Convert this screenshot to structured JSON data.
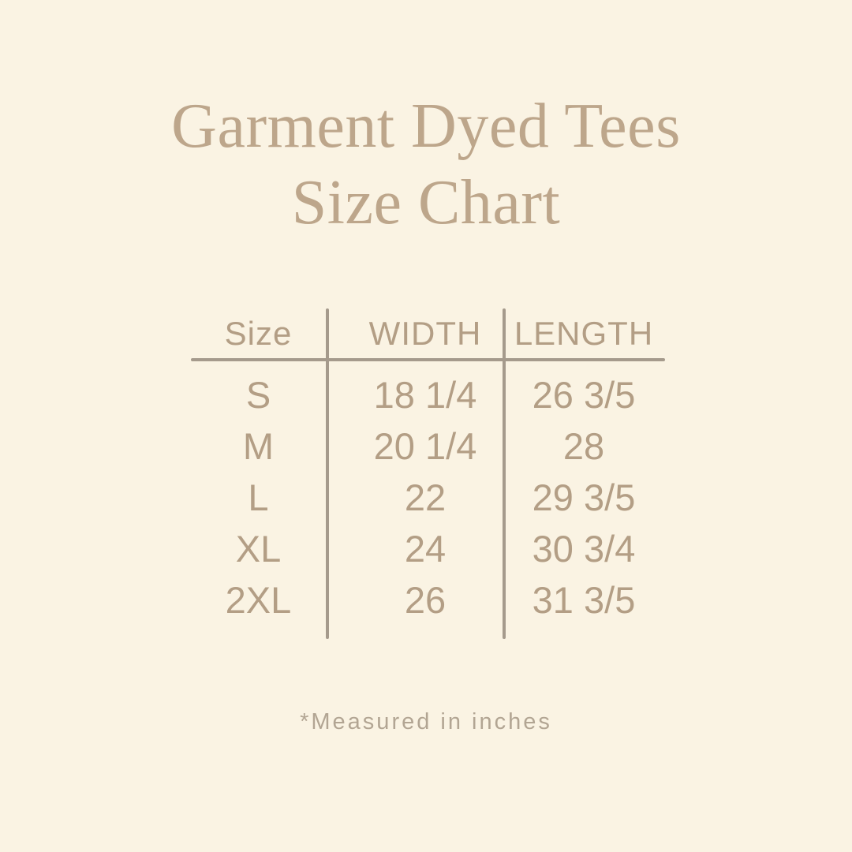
{
  "title": {
    "line1": "Garment Dyed Tees",
    "line2": "Size Chart"
  },
  "table": {
    "headers": [
      "Size",
      "WIDTH",
      "LENGTH"
    ],
    "rows": [
      {
        "size": "S",
        "width": "18 1/4",
        "length": "26 3/5"
      },
      {
        "size": "M",
        "width": "20 1/4",
        "length": "28"
      },
      {
        "size": "L",
        "width": "22",
        "length": "29 3/5"
      },
      {
        "size": "XL",
        "width": "24",
        "length": "30 3/4"
      },
      {
        "size": "2XL",
        "width": "26",
        "length": "31 3/5"
      }
    ]
  },
  "footnote": "*Measured in inches",
  "colors": {
    "background": "#faf3e3",
    "title-text": "#bda68b",
    "table-text": "#b39e85",
    "line": "#a59a8c",
    "footnote-text": "#b2a593"
  },
  "chart_data": {
    "type": "table",
    "title": "Garment Dyed Tees Size Chart",
    "columns": [
      "Size",
      "WIDTH",
      "LENGTH"
    ],
    "rows": [
      [
        "S",
        "18 1/4",
        "26 3/5"
      ],
      [
        "M",
        "20 1/4",
        "28"
      ],
      [
        "L",
        "22",
        "29 3/5"
      ],
      [
        "XL",
        "24",
        "30 3/4"
      ],
      [
        "2XL",
        "26",
        "31 3/5"
      ]
    ],
    "note": "*Measured in inches",
    "units": "inches"
  }
}
